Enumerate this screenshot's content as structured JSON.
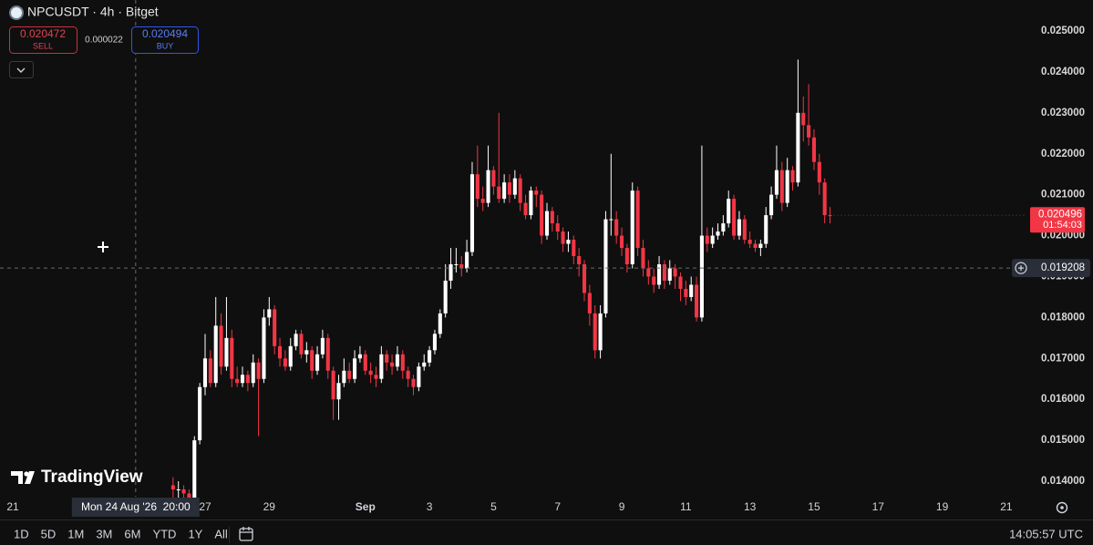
{
  "header": {
    "symbol": "NPCUSDT · 4h · Bitget"
  },
  "trade_panel": {
    "sell_price": "0.020472",
    "sell_label": "SELL",
    "spread": "0.000022",
    "buy_price": "0.020494",
    "buy_label": "BUY"
  },
  "watermark": "TradingView",
  "toolbar": {
    "ranges": [
      "1D",
      "5D",
      "1M",
      "3M",
      "6M",
      "YTD",
      "1Y",
      "All"
    ],
    "clock": "14:05:57 UTC"
  },
  "chart_data": {
    "type": "candlestick",
    "up_color": "#ffffff",
    "down_color": "#f23645",
    "grid": false,
    "xlim": [
      "2026-08-20 14:24",
      "2026-09-21 14:24"
    ],
    "xticks": [
      {
        "value": "2026-08-21",
        "label": "21"
      },
      {
        "value": "2026-08-27",
        "label": "27"
      },
      {
        "value": "2026-08-29",
        "label": "29"
      },
      {
        "value": "2026-09-01",
        "label": "Sep"
      },
      {
        "value": "2026-09-03",
        "label": "3"
      },
      {
        "value": "2026-09-05",
        "label": "5"
      },
      {
        "value": "2026-09-07",
        "label": "7"
      },
      {
        "value": "2026-09-09",
        "label": "9"
      },
      {
        "value": "2026-09-11",
        "label": "11"
      },
      {
        "value": "2026-09-13",
        "label": "13"
      },
      {
        "value": "2026-09-15",
        "label": "15"
      },
      {
        "value": "2026-09-17",
        "label": "17"
      },
      {
        "value": "2026-09-19",
        "label": "19"
      },
      {
        "value": "2026-09-21",
        "label": "21"
      }
    ],
    "ylim": [
      0.013622,
      0.025757
    ],
    "yticks": [
      {
        "value": 0.025,
        "label": "0.025000"
      },
      {
        "value": 0.024,
        "label": "0.024000"
      },
      {
        "value": 0.023,
        "label": "0.023000"
      },
      {
        "value": 0.022,
        "label": "0.022000"
      },
      {
        "value": 0.021,
        "label": "0.021000"
      },
      {
        "value": 0.02,
        "label": "0.020000"
      },
      {
        "value": 0.019,
        "label": "0.019000"
      },
      {
        "value": 0.018,
        "label": "0.018000"
      },
      {
        "value": 0.017,
        "label": "0.017000"
      },
      {
        "value": 0.016,
        "label": "0.016000"
      },
      {
        "value": 0.015,
        "label": "0.015000"
      },
      {
        "value": 0.014,
        "label": "0.014000"
      }
    ],
    "crosshair": {
      "x": "2026-08-24 20:00",
      "time_label": "Mon 24 Aug '26  20:00",
      "price": 0.019208
    },
    "countdown": "01:54:03",
    "x": [
      "2026-08-26 00:00",
      "2026-08-26 04:00",
      "2026-08-26 08:00",
      "2026-08-26 12:00",
      "2026-08-26 16:00",
      "2026-08-26 20:00",
      "2026-08-27 00:00",
      "2026-08-27 04:00",
      "2026-08-27 08:00",
      "2026-08-27 12:00",
      "2026-08-27 16:00",
      "2026-08-27 20:00",
      "2026-08-28 00:00",
      "2026-08-28 04:00",
      "2026-08-28 08:00",
      "2026-08-28 12:00",
      "2026-08-28 16:00",
      "2026-08-28 20:00",
      "2026-08-29 00:00",
      "2026-08-29 04:00",
      "2026-08-29 08:00",
      "2026-08-29 12:00",
      "2026-08-29 16:00",
      "2026-08-29 20:00",
      "2026-08-30 00:00",
      "2026-08-30 04:00",
      "2026-08-30 08:00",
      "2026-08-30 12:00",
      "2026-08-30 16:00",
      "2026-08-30 20:00",
      "2026-08-31 00:00",
      "2026-08-31 04:00",
      "2026-08-31 08:00",
      "2026-08-31 12:00",
      "2026-08-31 16:00",
      "2026-08-31 20:00",
      "2026-09-01 00:00",
      "2026-09-01 04:00",
      "2026-09-01 08:00",
      "2026-09-01 12:00",
      "2026-09-01 16:00",
      "2026-09-01 20:00",
      "2026-09-02 00:00",
      "2026-09-02 04:00",
      "2026-09-02 08:00",
      "2026-09-02 12:00",
      "2026-09-02 16:00",
      "2026-09-02 20:00",
      "2026-09-03 00:00",
      "2026-09-03 04:00",
      "2026-09-03 08:00",
      "2026-09-03 12:00",
      "2026-09-03 16:00",
      "2026-09-03 20:00",
      "2026-09-04 00:00",
      "2026-09-04 04:00",
      "2026-09-04 08:00",
      "2026-09-04 12:00",
      "2026-09-04 16:00",
      "2026-09-04 20:00",
      "2026-09-05 00:00",
      "2026-09-05 04:00",
      "2026-09-05 08:00",
      "2026-09-05 12:00",
      "2026-09-05 16:00",
      "2026-09-05 20:00",
      "2026-09-06 00:00",
      "2026-09-06 04:00",
      "2026-09-06 08:00",
      "2026-09-06 12:00",
      "2026-09-06 16:00",
      "2026-09-06 20:00",
      "2026-09-07 00:00",
      "2026-09-07 04:00",
      "2026-09-07 08:00",
      "2026-09-07 12:00",
      "2026-09-07 16:00",
      "2026-09-07 20:00",
      "2026-09-08 00:00",
      "2026-09-08 04:00",
      "2026-09-08 08:00",
      "2026-09-08 12:00",
      "2026-09-08 16:00",
      "2026-09-08 20:00",
      "2026-09-09 00:00",
      "2026-09-09 04:00",
      "2026-09-09 08:00",
      "2026-09-09 12:00",
      "2026-09-09 16:00",
      "2026-09-09 20:00",
      "2026-09-10 00:00",
      "2026-09-10 04:00",
      "2026-09-10 08:00",
      "2026-09-10 12:00",
      "2026-09-10 16:00",
      "2026-09-10 20:00",
      "2026-09-11 00:00",
      "2026-09-11 04:00",
      "2026-09-11 08:00",
      "2026-09-11 12:00",
      "2026-09-11 16:00",
      "2026-09-11 20:00",
      "2026-09-12 00:00",
      "2026-09-12 04:00",
      "2026-09-12 08:00",
      "2026-09-12 12:00",
      "2026-09-12 16:00",
      "2026-09-12 20:00",
      "2026-09-13 00:00",
      "2026-09-13 04:00",
      "2026-09-13 08:00",
      "2026-09-13 12:00",
      "2026-09-13 16:00",
      "2026-09-13 20:00",
      "2026-09-14 00:00",
      "2026-09-14 04:00",
      "2026-09-14 08:00",
      "2026-09-14 12:00",
      "2026-09-14 16:00",
      "2026-09-14 20:00",
      "2026-09-15 00:00",
      "2026-09-15 04:00",
      "2026-09-15 08:00",
      "2026-09-15 12:00"
    ],
    "open": [
      0.0139,
      0.0138,
      0.0138,
      0.0137,
      0.0136,
      0.015,
      0.0163,
      0.017,
      0.0164,
      0.0178,
      0.0168,
      0.0175,
      0.0165,
      0.0164,
      0.0166,
      0.0164,
      0.0169,
      0.0165,
      0.018,
      0.0182,
      0.0173,
      0.017,
      0.0168,
      0.0173,
      0.0176,
      0.0171,
      0.0172,
      0.0167,
      0.0171,
      0.0175,
      0.0167,
      0.016,
      0.0164,
      0.0167,
      0.0165,
      0.017,
      0.0171,
      0.0167,
      0.0166,
      0.0165,
      0.0171,
      0.0169,
      0.0168,
      0.0171,
      0.0167,
      0.0165,
      0.0163,
      0.0168,
      0.0169,
      0.0172,
      0.0176,
      0.0181,
      0.0189,
      0.0193,
      0.0193,
      0.0192,
      0.0196,
      0.0215,
      0.0209,
      0.0208,
      0.0216,
      0.0212,
      0.0209,
      0.0213,
      0.021,
      0.0214,
      0.0208,
      0.0205,
      0.0211,
      0.021,
      0.02,
      0.0206,
      0.0203,
      0.0201,
      0.0198,
      0.0199,
      0.0195,
      0.0193,
      0.0186,
      0.0181,
      0.0172,
      0.0181,
      0.0204,
      0.0204,
      0.02,
      0.0197,
      0.0193,
      0.0211,
      0.0197,
      0.0192,
      0.019,
      0.0188,
      0.0193,
      0.0189,
      0.0192,
      0.019,
      0.0187,
      0.0185,
      0.0188,
      0.018,
      0.02,
      0.0198,
      0.02,
      0.0201,
      0.0203,
      0.0209,
      0.02,
      0.0204,
      0.0199,
      0.0198,
      0.0197,
      0.0198,
      0.0205,
      0.021,
      0.0216,
      0.0208,
      0.0216,
      0.0213,
      0.023,
      0.0227,
      0.0224,
      0.0218,
      0.0213,
      0.0205
    ],
    "high": [
      0.0141,
      0.014,
      0.0139,
      0.0138,
      0.0151,
      0.0164,
      0.0176,
      0.0172,
      0.0185,
      0.0181,
      0.0185,
      0.0177,
      0.0168,
      0.0168,
      0.0167,
      0.0171,
      0.017,
      0.0182,
      0.0185,
      0.0183,
      0.0175,
      0.0172,
      0.0175,
      0.0177,
      0.0177,
      0.0174,
      0.0173,
      0.0173,
      0.0177,
      0.0176,
      0.0168,
      0.0166,
      0.017,
      0.0169,
      0.0172,
      0.0173,
      0.0172,
      0.0169,
      0.0168,
      0.0173,
      0.0172,
      0.0171,
      0.0173,
      0.0172,
      0.0168,
      0.0166,
      0.0169,
      0.0171,
      0.0173,
      0.0177,
      0.0182,
      0.0193,
      0.0197,
      0.0197,
      0.0195,
      0.0199,
      0.0218,
      0.0222,
      0.0212,
      0.0222,
      0.0217,
      0.023,
      0.0215,
      0.0215,
      0.0216,
      0.0215,
      0.021,
      0.0212,
      0.0212,
      0.0211,
      0.0208,
      0.0207,
      0.0205,
      0.0202,
      0.0201,
      0.02,
      0.0197,
      0.0194,
      0.0188,
      0.0183,
      0.0183,
      0.0206,
      0.022,
      0.0206,
      0.0202,
      0.0198,
      0.0213,
      0.0212,
      0.0199,
      0.0194,
      0.0192,
      0.0195,
      0.0194,
      0.0194,
      0.0193,
      0.0191,
      0.0189,
      0.019,
      0.019,
      0.0222,
      0.0202,
      0.0202,
      0.0203,
      0.0205,
      0.0211,
      0.021,
      0.0206,
      0.0205,
      0.0201,
      0.0199,
      0.0199,
      0.0207,
      0.0212,
      0.0222,
      0.0218,
      0.0219,
      0.0217,
      0.0243,
      0.0234,
      0.0237,
      0.0226,
      0.022,
      0.0214,
      0.0207
    ],
    "low": [
      0.0136,
      0.0136,
      0.0135,
      0.0134,
      0.0135,
      0.0149,
      0.0161,
      0.0163,
      0.0163,
      0.0166,
      0.0167,
      0.0163,
      0.0163,
      0.0163,
      0.0162,
      0.0163,
      0.0151,
      0.0164,
      0.0178,
      0.0171,
      0.0168,
      0.0167,
      0.0167,
      0.0172,
      0.017,
      0.0169,
      0.0165,
      0.0166,
      0.017,
      0.0165,
      0.0155,
      0.0155,
      0.0163,
      0.0164,
      0.0164,
      0.0169,
      0.0166,
      0.0164,
      0.0163,
      0.0164,
      0.0167,
      0.0166,
      0.0167,
      0.0165,
      0.0163,
      0.0161,
      0.0162,
      0.0167,
      0.0168,
      0.0171,
      0.0175,
      0.018,
      0.0187,
      0.0191,
      0.019,
      0.0191,
      0.0195,
      0.0207,
      0.0206,
      0.0207,
      0.021,
      0.0208,
      0.0208,
      0.0208,
      0.0209,
      0.0206,
      0.0204,
      0.0204,
      0.0207,
      0.0198,
      0.0199,
      0.0201,
      0.0199,
      0.0196,
      0.0196,
      0.0193,
      0.019,
      0.0184,
      0.0178,
      0.017,
      0.017,
      0.018,
      0.02,
      0.0198,
      0.0195,
      0.0191,
      0.0192,
      0.0195,
      0.019,
      0.0188,
      0.0186,
      0.0187,
      0.0187,
      0.0188,
      0.0187,
      0.0184,
      0.0183,
      0.0184,
      0.0179,
      0.0179,
      0.0196,
      0.0197,
      0.0199,
      0.02,
      0.0202,
      0.0199,
      0.0199,
      0.0198,
      0.0197,
      0.0196,
      0.0195,
      0.0197,
      0.0204,
      0.0209,
      0.0206,
      0.0207,
      0.0211,
      0.0212,
      0.0223,
      0.0222,
      0.0216,
      0.021,
      0.0203,
      0.0203
    ],
    "close": [
      0.0138,
      0.0138,
      0.0137,
      0.0136,
      0.015,
      0.0163,
      0.017,
      0.0164,
      0.0178,
      0.0168,
      0.0175,
      0.0165,
      0.0164,
      0.0166,
      0.0164,
      0.0169,
      0.0165,
      0.018,
      0.0182,
      0.0173,
      0.017,
      0.0168,
      0.0173,
      0.0176,
      0.0171,
      0.0172,
      0.0167,
      0.0171,
      0.0175,
      0.0167,
      0.016,
      0.0164,
      0.0167,
      0.0165,
      0.017,
      0.0171,
      0.0167,
      0.0166,
      0.0165,
      0.0171,
      0.0169,
      0.0168,
      0.0171,
      0.0167,
      0.0165,
      0.0163,
      0.0168,
      0.0169,
      0.0172,
      0.0176,
      0.0181,
      0.0189,
      0.0193,
      0.0193,
      0.0192,
      0.0196,
      0.0215,
      0.0209,
      0.0208,
      0.0216,
      0.0212,
      0.0209,
      0.0213,
      0.021,
      0.0214,
      0.0208,
      0.0205,
      0.0211,
      0.021,
      0.02,
      0.0206,
      0.0203,
      0.0201,
      0.0198,
      0.0199,
      0.0195,
      0.0193,
      0.0186,
      0.0181,
      0.0172,
      0.0181,
      0.0204,
      0.0204,
      0.02,
      0.0197,
      0.0193,
      0.0211,
      0.0197,
      0.0192,
      0.019,
      0.0188,
      0.0193,
      0.0189,
      0.0192,
      0.019,
      0.0187,
      0.0185,
      0.0188,
      0.018,
      0.02,
      0.0198,
      0.02,
      0.0201,
      0.0203,
      0.0209,
      0.02,
      0.0204,
      0.0199,
      0.0198,
      0.0197,
      0.0198,
      0.0205,
      0.021,
      0.0216,
      0.0208,
      0.0216,
      0.0213,
      0.023,
      0.0227,
      0.0224,
      0.0218,
      0.0213,
      0.0205,
      0.020496
    ]
  }
}
